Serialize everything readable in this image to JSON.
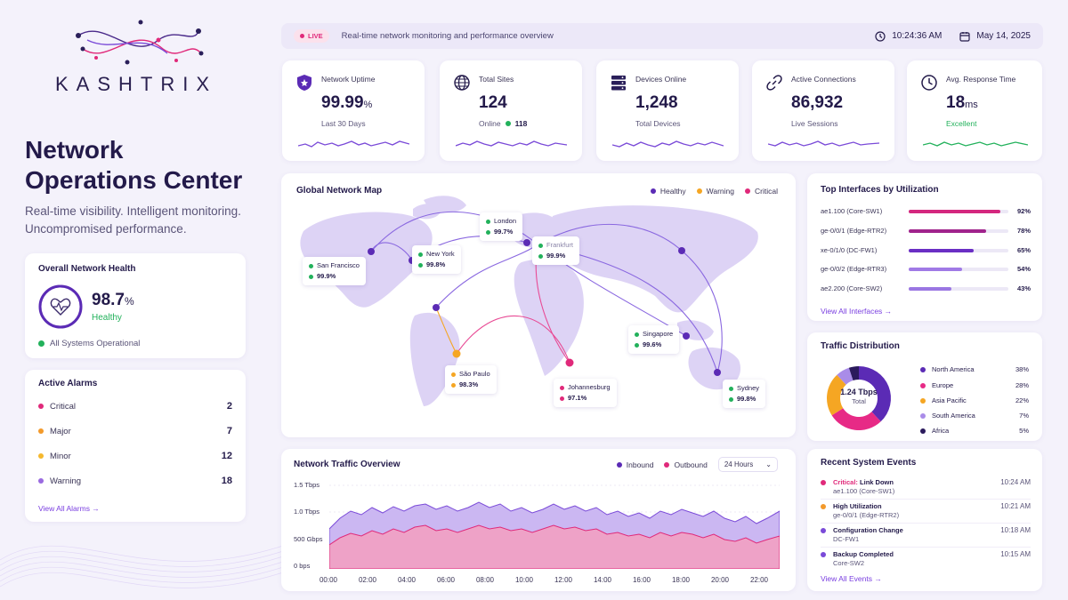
{
  "brand": {
    "name": "KASHTRIX"
  },
  "hero": {
    "title": "Network Operations Center",
    "subtitle": "Real-time visibility. Intelligent monitoring. Uncompromised performance."
  },
  "topbar": {
    "live": "LIVE",
    "text": "Real-time network monitoring and performance overview",
    "time": "10:24:36 AM",
    "date": "May 14, 2025"
  },
  "kpis": [
    {
      "label": "Network Uptime",
      "value": "99.99",
      "unit": "%",
      "sub": "Last 30 Days",
      "icon": "shield-icon"
    },
    {
      "label": "Total Sites",
      "value": "124",
      "sub": "Online",
      "sub_value": "118",
      "icon": "globe-icon"
    },
    {
      "label": "Devices Online",
      "value": "1,248",
      "sub": "Total Devices",
      "icon": "server-icon"
    },
    {
      "label": "Active Connections",
      "value": "86,932",
      "sub": "Live Sessions",
      "icon": "link-icon"
    },
    {
      "label": "Avg. Response Time",
      "value": "18",
      "unit": "ms",
      "sub": "Excellent",
      "icon": "clock-icon"
    }
  ],
  "health": {
    "title": "Overall Network Health",
    "value": "98.7",
    "unit": "%",
    "level": 0.987,
    "state": "Healthy",
    "ops": "All Systems Operational"
  },
  "alarms": {
    "title": "Active Alarms",
    "rows": [
      {
        "label": "Critical",
        "count": "2",
        "color": "#e0297a"
      },
      {
        "label": "Major",
        "count": "7",
        "color": "#f39a2b"
      },
      {
        "label": "Minor",
        "count": "12",
        "color": "#f5b82e"
      },
      {
        "label": "Warning",
        "count": "18",
        "color": "#9a6ae0"
      }
    ],
    "link": "View All Alarms →"
  },
  "map": {
    "title": "Global Network Map",
    "legend": [
      "Healthy",
      "Warning",
      "Critical"
    ],
    "pins": [
      {
        "city": "London",
        "value": "99.7%"
      },
      {
        "city": "Frankfurt",
        "value": "99.9%"
      },
      {
        "city": "San Francisco",
        "value": "99.9%"
      },
      {
        "city": "New York",
        "value": "99.8%"
      },
      {
        "city": "Singapore",
        "value": "99.6%"
      },
      {
        "city": "São Paulo",
        "value": "98.3%"
      },
      {
        "city": "Johannesburg",
        "value": "97.1%"
      },
      {
        "city": "Sydney",
        "value": "99.8%"
      }
    ]
  },
  "traffic": {
    "title": "Network Traffic Overview",
    "legend": [
      "Inbound",
      "Outbound"
    ],
    "range": "24 Hours",
    "y_ticks": [
      "1.5 Tbps",
      "1.0 Tbps",
      "500 Gbps",
      "0 bps"
    ],
    "x_ticks": [
      "00:00",
      "02:00",
      "04:00",
      "06:00",
      "08:00",
      "10:00",
      "12:00",
      "14:00",
      "16:00",
      "18:00",
      "20:00",
      "22:00"
    ]
  },
  "interfaces": {
    "title": "Top Interfaces by Utilization",
    "rows": [
      {
        "name": "ae1.100 (Core-SW1)",
        "pct": "92%",
        "level": 0.92,
        "color": "#d4277e"
      },
      {
        "name": "ge-0/0/1 (Edge-RTR2)",
        "pct": "78%",
        "level": 0.78,
        "color": "#a0238c"
      },
      {
        "name": "xe-0/1/0 (DC-FW1)",
        "pct": "65%",
        "level": 0.65,
        "color": "#6a2ec4"
      },
      {
        "name": "ge-0/0/2 (Edge-RTR3)",
        "pct": "54%",
        "level": 0.54,
        "color": "#a07ae6"
      },
      {
        "name": "ae2.200 (Core-SW2)",
        "pct": "43%",
        "level": 0.43,
        "color": "#9a76e2"
      }
    ],
    "link": "View All Interfaces →"
  },
  "distribution": {
    "title": "Traffic Distribution",
    "total": "1.24 Tbps",
    "total_label": "Total",
    "rows": [
      {
        "label": "North America",
        "pct": "38%",
        "value": 38,
        "color": "#5b2bb5"
      },
      {
        "label": "Europe",
        "pct": "28%",
        "value": 28,
        "color": "#e72a86"
      },
      {
        "label": "Asia Pacific",
        "pct": "22%",
        "value": 22,
        "color": "#f5a623"
      },
      {
        "label": "South America",
        "pct": "7%",
        "value": 7,
        "color": "#a98ce8"
      },
      {
        "label": "Africa",
        "pct": "5%",
        "value": 5,
        "color": "#2b1a5c"
      }
    ]
  },
  "events": {
    "title": "Recent System Events",
    "rows": [
      {
        "severity": "Critical:",
        "title": "Link Down",
        "sub": "ae1.100 (Core-SW1)",
        "time": "10:24 AM",
        "color": "#e0297a"
      },
      {
        "severity": "",
        "title": "High Utilization",
        "sub": "ge-0/0/1 (Edge-RTR2)",
        "time": "10:21 AM",
        "color": "#f39a2b"
      },
      {
        "severity": "",
        "title": "Configuration Change",
        "sub": "DC-FW1",
        "time": "10:18 AM",
        "color": "#7a4ad8"
      },
      {
        "severity": "",
        "title": "Backup Completed",
        "sub": "Core-SW2",
        "time": "10:15 AM",
        "color": "#7a4ad8"
      }
    ],
    "link": "View All Events →"
  }
}
